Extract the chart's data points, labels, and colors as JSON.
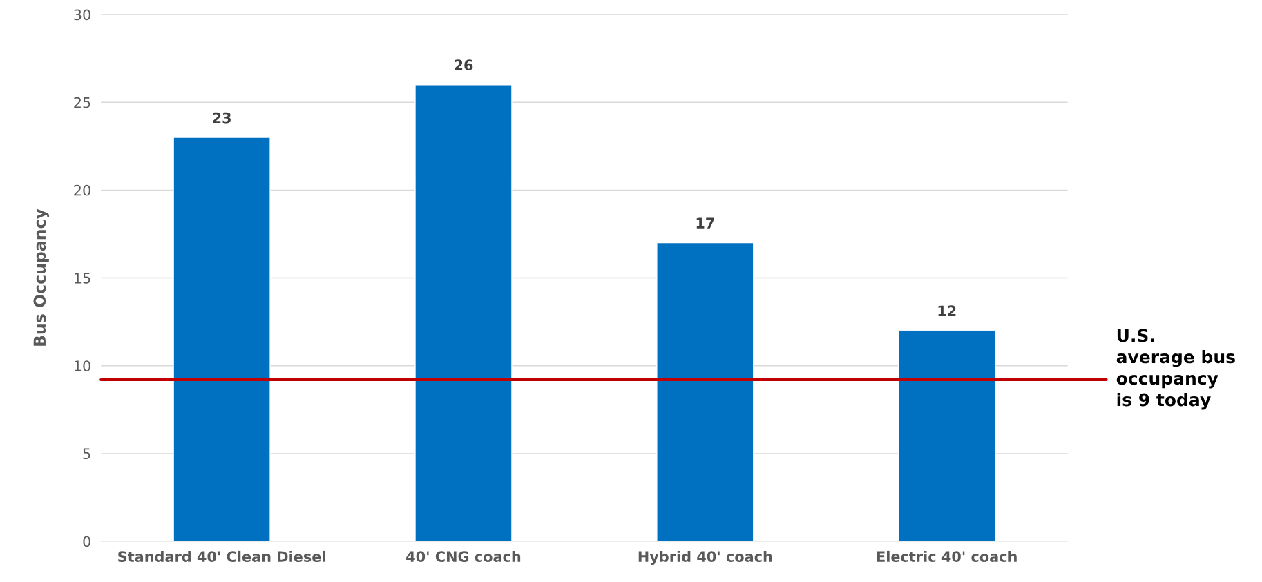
{
  "chart_data": {
    "type": "bar",
    "ylabel": "Bus Occupancy",
    "categories": [
      "Standard 40' Clean Diesel",
      "40' CNG coach",
      "Hybrid 40' coach",
      "Electric 40' coach"
    ],
    "values": [
      23,
      26,
      17,
      12
    ],
    "color": "#0070c0",
    "ylim": [
      0,
      30
    ],
    "yticks": [
      0,
      5,
      10,
      15,
      20,
      25,
      30
    ],
    "grid": "y",
    "data_labels": true,
    "ref_lines": [
      {
        "axis": "y",
        "value": 9.2,
        "label": "U.S.\naverage bus\noccupancy\nis 9 today",
        "color": "#c00000"
      }
    ]
  }
}
